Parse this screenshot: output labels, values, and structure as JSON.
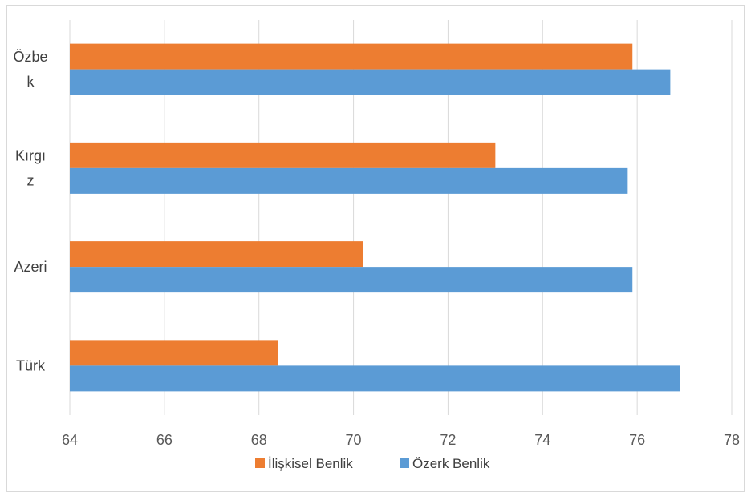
{
  "chart_data": {
    "type": "bar",
    "orientation": "horizontal",
    "categories": [
      {
        "lines": [
          "Özbe",
          "k"
        ]
      },
      {
        "lines": [
          "Kırgı",
          "z"
        ]
      },
      {
        "lines": [
          "Azeri"
        ]
      },
      {
        "lines": [
          "Türk"
        ]
      }
    ],
    "series": [
      {
        "name": "İlişkisel Benlik",
        "color": "#ED7D31",
        "values": [
          75.9,
          73.0,
          70.2,
          68.4
        ]
      },
      {
        "name": "Özerk Benlik",
        "color": "#5B9BD5",
        "values": [
          76.7,
          75.8,
          75.9,
          76.9
        ]
      }
    ],
    "xlim": [
      64,
      78
    ],
    "xticks": [
      "64",
      "66",
      "68",
      "70",
      "72",
      "74",
      "76",
      "78"
    ],
    "grid": true,
    "legend_position": "bottom",
    "title": "",
    "xlabel": "",
    "ylabel": ""
  }
}
